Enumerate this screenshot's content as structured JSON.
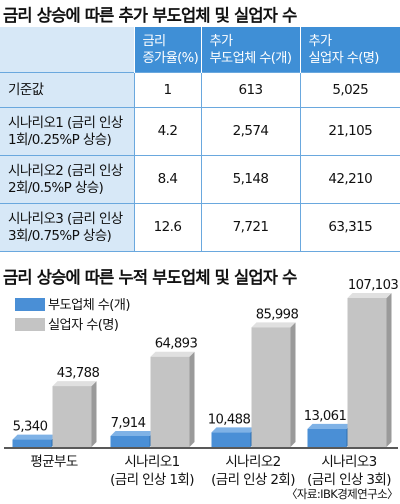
{
  "title_table": "금리 상승에 따른 추가 부도업체 및 실업자 수",
  "table": {
    "headers": [
      [
        "금리",
        "증가율(%)"
      ],
      [
        "추가",
        "부도업체 수(개)"
      ],
      [
        "추가",
        "실업자 수(명)"
      ]
    ],
    "rows": [
      {
        "label": [
          "기준값"
        ],
        "rate": "1",
        "firms": "613",
        "unemployed": "5,025"
      },
      {
        "label": [
          "시나리오1 (금리 인상",
          "1회/0.25%P 상승)"
        ],
        "rate": "4.2",
        "firms": "2,574",
        "unemployed": "21,105"
      },
      {
        "label": [
          "시나리오2 (금리 인상",
          "2회/0.5%P 상승)"
        ],
        "rate": "8.4",
        "firms": "5,148",
        "unemployed": "42,210"
      },
      {
        "label": [
          "시나리오3 (금리 인상",
          "3회/0.75%P 상승)"
        ],
        "rate": "12.6",
        "firms": "7,721",
        "unemployed": "63,315"
      }
    ]
  },
  "chart_data": {
    "type": "bar",
    "title": "금리 상승에 따른 누적 부도업체 및 실업자 수",
    "categories": [
      [
        "평균부도"
      ],
      [
        "시나리오1",
        "(금리 인상 1회)"
      ],
      [
        "시나리오2",
        "(금리 인상 2회)"
      ],
      [
        "시나리오3",
        "(금리 인상 3회)"
      ]
    ],
    "series": [
      {
        "name": "부도업체 수(개)",
        "values": [
          5340,
          7914,
          10488,
          13061
        ],
        "labels": [
          "5,340",
          "7,914",
          "10,488",
          "13,061"
        ],
        "color": "#4a8fd6"
      },
      {
        "name": "실업자 수(명)",
        "values": [
          43788,
          64893,
          85998,
          107103
        ],
        "labels": [
          "43,788",
          "64,893",
          "85,998",
          "107,103"
        ],
        "color": "#c4c4c4"
      }
    ],
    "legend": "top-left",
    "grid": false
  },
  "source": "〈자료:IBK경제연구소〉"
}
